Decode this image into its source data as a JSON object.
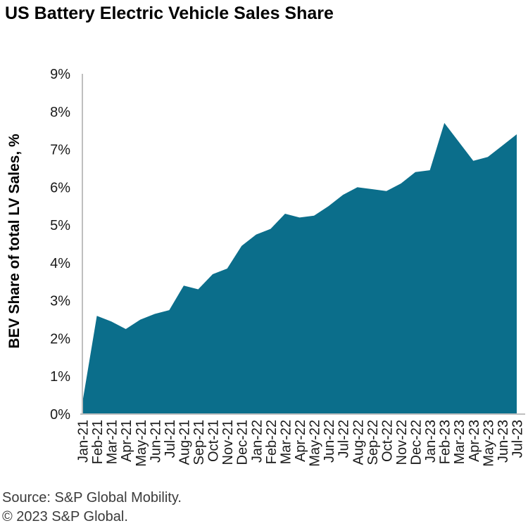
{
  "title": "US Battery Electric Vehicle Sales Share",
  "source": {
    "line1": "Source: S&P Global Mobility.",
    "line2": "© 2023 S&P Global."
  },
  "colors": {
    "area_fill": "#0B6E8B",
    "axis_line": "#BFBFBF",
    "title_text": "#000000",
    "tick_text": "#1A1A1A",
    "source_text": "#3B3B3B"
  },
  "chart_data": {
    "type": "area",
    "title": "US Battery Electric Vehicle Sales Share",
    "xlabel": "",
    "ylabel": "BEV Share of total LV Sales, %",
    "ylim": [
      0,
      9
    ],
    "ytick_labels": [
      "0%",
      "1%",
      "2%",
      "3%",
      "4%",
      "5%",
      "6%",
      "7%",
      "8%",
      "9%"
    ],
    "grid": false,
    "legend": "none",
    "categories": [
      "Jan-21",
      "Feb-21",
      "Mar-21",
      "Apr-21",
      "May-21",
      "Jun-21",
      "Jul-21",
      "Aug-21",
      "Sep-21",
      "Oct-21",
      "Nov-21",
      "Dec-21",
      "Jan-22",
      "Feb-22",
      "Mar-22",
      "Apr-22",
      "May-22",
      "Jun-22",
      "Jul-22",
      "Aug-22",
      "Sep-22",
      "Oct-22",
      "Nov-22",
      "Dec-22",
      "Jan-23",
      "Feb-23",
      "Mar-23",
      "Apr-23",
      "May-23",
      "Jun-23",
      "Jul-23"
    ],
    "values": [
      0.3,
      2.6,
      2.45,
      2.25,
      2.5,
      2.65,
      2.75,
      3.4,
      3.3,
      3.7,
      3.85,
      4.45,
      4.75,
      4.9,
      5.3,
      5.2,
      5.25,
      5.5,
      5.8,
      6.0,
      5.95,
      5.9,
      6.1,
      6.4,
      6.45,
      7.7,
      7.2,
      6.7,
      6.8,
      7.1,
      7.4
    ]
  }
}
